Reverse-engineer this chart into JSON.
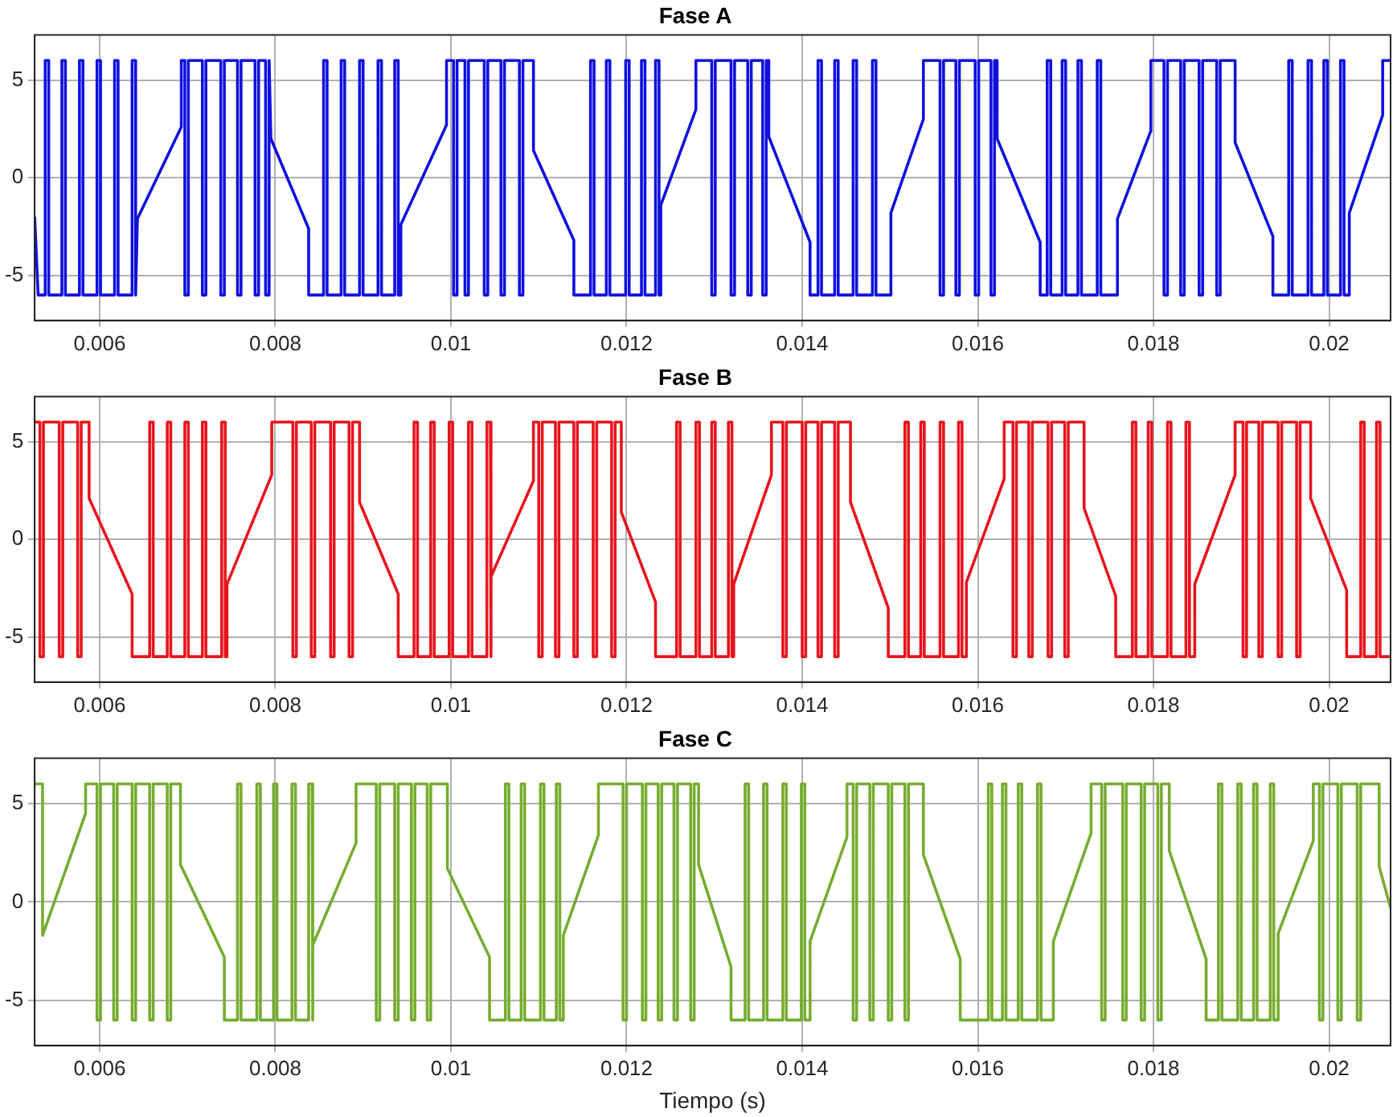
{
  "chart_data": [
    {
      "type": "line",
      "title": "Fase A",
      "xlim": [
        0.00526,
        0.0207
      ],
      "xticks": [
        0.006,
        0.008,
        0.01,
        0.012,
        0.014,
        0.016,
        0.018,
        0.02
      ],
      "ylim": [
        -7.3,
        7.3
      ],
      "yticks": [
        -5,
        0,
        5
      ],
      "grid": true,
      "marker": "none",
      "line_style": "solid",
      "series": [
        {
          "color": "#1010e0",
          "x": [
            0.00526,
            0.0053,
            0.00538,
            0.00538,
            0.00542,
            0.00542,
            0.00557,
            0.00557,
            0.00561,
            0.00561,
            0.00577,
            0.00577,
            0.00581,
            0.00581,
            0.00597,
            0.00597,
            0.00601,
            0.00601,
            0.00617,
            0.00617,
            0.00621,
            0.00621,
            0.00637,
            0.00637,
            0.00641,
            0.00641,
            0.00643,
            0.00693,
            0.00693,
            0.00697,
            0.00697,
            0.00701,
            0.00701,
            0.00717,
            0.00717,
            0.00721,
            0.00721,
            0.00738,
            0.00738,
            0.00742,
            0.00742,
            0.00757,
            0.00757,
            0.00761,
            0.00761,
            0.00777,
            0.00777,
            0.00781,
            0.00781,
            0.00789,
            0.00789,
            0.00793,
            0.00793,
            0.00795,
            0.00838,
            0.00838,
            0.00855,
            0.00855,
            0.00859,
            0.00859,
            0.00875,
            0.00875,
            0.00879,
            0.00879,
            0.00896,
            0.00896,
            0.009,
            0.009,
            0.00917,
            0.00917,
            0.00921,
            0.00921,
            0.00936,
            0.00936,
            0.0094,
            0.0094,
            0.00943,
            0.00943,
            0.00995,
            0.00995,
            0.01003,
            0.01003,
            0.01007,
            0.01007,
            0.01016,
            0.01016,
            0.0102,
            0.0102,
            0.01038,
            0.01038,
            0.01042,
            0.01042,
            0.01057,
            0.01057,
            0.01061,
            0.01061,
            0.01078,
            0.01078,
            0.01082,
            0.01082,
            0.01094,
            0.01094,
            0.0114,
            0.0114,
            0.01159,
            0.01159,
            0.01163,
            0.01163,
            0.01177,
            0.01177,
            0.01181,
            0.01181,
            0.01199,
            0.01199,
            0.01203,
            0.01203,
            0.01217,
            0.01217,
            0.01221,
            0.01221,
            0.01233,
            0.01233,
            0.01237,
            0.01237,
            0.01239,
            0.01239,
            0.01279,
            0.01279,
            0.01297,
            0.01297,
            0.01301,
            0.01301,
            0.01319,
            0.01319,
            0.01323,
            0.01323,
            0.01338,
            0.01338,
            0.01342,
            0.01342,
            0.01355,
            0.01355,
            0.01359,
            0.01359,
            0.01362,
            0.01362,
            0.01409,
            0.01409,
            0.01418,
            0.01418,
            0.01422,
            0.01422,
            0.01437,
            0.01437,
            0.01441,
            0.01441,
            0.01458,
            0.01458,
            0.01462,
            0.01462,
            0.0148,
            0.0148,
            0.01484,
            0.01484,
            0.01501,
            0.01501,
            0.01538,
            0.01538,
            0.01557,
            0.01557,
            0.01561,
            0.01561,
            0.01575,
            0.01575,
            0.01579,
            0.01579,
            0.01597,
            0.01597,
            0.01601,
            0.01601,
            0.01615,
            0.01615,
            0.01619,
            0.01619,
            0.01622,
            0.01622,
            0.01671,
            0.01671,
            0.01679,
            0.01679,
            0.01683,
            0.01683,
            0.01696,
            0.01696,
            0.017,
            0.017,
            0.01714,
            0.01714,
            0.01718,
            0.01718,
            0.01736,
            0.01736,
            0.0174,
            0.0174,
            0.01759,
            0.01759,
            0.01797,
            0.01797,
            0.01812,
            0.01812,
            0.01816,
            0.01816,
            0.01831,
            0.01831,
            0.01835,
            0.01835,
            0.01852,
            0.01852,
            0.01856,
            0.01856,
            0.01872,
            0.01872,
            0.01876,
            0.01876,
            0.01893,
            0.01893,
            0.01936,
            0.01936,
            0.01954,
            0.01954,
            0.01958,
            0.01958,
            0.01976,
            0.01976,
            0.0198,
            0.0198,
            0.01994,
            0.01994,
            0.01998,
            0.01998,
            0.02013,
            0.02013,
            0.02017,
            0.02017,
            0.02023,
            0.02023,
            0.02061,
            0.02061,
            0.0207
          ],
          "values": [
            -2,
            -6,
            -6,
            6,
            6,
            -6,
            -6,
            6,
            6,
            -6,
            -6,
            6,
            6,
            -6,
            -6,
            6,
            6,
            -6,
            -6,
            6,
            6,
            -6,
            -6,
            6,
            6,
            -6,
            -2.1,
            2.6,
            6,
            6,
            -6,
            -6,
            6,
            6,
            -6,
            -6,
            6,
            6,
            -6,
            -6,
            6,
            6,
            -6,
            -6,
            6,
            6,
            -6,
            -6,
            6,
            6,
            -6,
            -6,
            6,
            2,
            -2.6,
            -6,
            -6,
            6,
            6,
            -6,
            -6,
            6,
            6,
            -6,
            -6,
            6,
            6,
            -6,
            -6,
            6,
            6,
            -6,
            -6,
            6,
            6,
            -6,
            -6,
            -2.4,
            2.7,
            6,
            6,
            -6,
            -6,
            6,
            6,
            -6,
            -6,
            6,
            6,
            -6,
            -6,
            6,
            6,
            -6,
            -6,
            6,
            6,
            -6,
            -6,
            6,
            6,
            1.4,
            -3.2,
            -6,
            -6,
            6,
            6,
            -6,
            -6,
            6,
            6,
            -6,
            -6,
            6,
            6,
            -6,
            -6,
            6,
            6,
            -6,
            -6,
            6,
            6,
            -6,
            -6,
            -1.4,
            3.5,
            6,
            6,
            -6,
            -6,
            6,
            6,
            -6,
            -6,
            6,
            6,
            -6,
            -6,
            6,
            6,
            -6,
            -6,
            6,
            6,
            2.1,
            -3.3,
            -6,
            -6,
            6,
            6,
            -6,
            -6,
            6,
            6,
            -6,
            -6,
            6,
            6,
            -6,
            -6,
            6,
            6,
            -6,
            -6,
            -1.8,
            3,
            6,
            6,
            -6,
            -6,
            6,
            6,
            -6,
            -6,
            6,
            6,
            -6,
            -6,
            6,
            6,
            -6,
            -6,
            6,
            6,
            2,
            -3.3,
            -6,
            -6,
            6,
            6,
            -6,
            -6,
            6,
            6,
            -6,
            -6,
            6,
            6,
            -6,
            -6,
            6,
            6,
            -6,
            -6,
            -2.1,
            2.4,
            6,
            6,
            -6,
            -6,
            6,
            6,
            -6,
            -6,
            6,
            6,
            -6,
            -6,
            6,
            6,
            -6,
            -6,
            6,
            6,
            1.8,
            -3,
            -6,
            -6,
            6,
            6,
            -6,
            -6,
            6,
            6,
            -6,
            -6,
            6,
            6,
            -6,
            -6,
            6,
            6,
            -6,
            -6,
            -1.8,
            3.2,
            6,
            6
          ]
        }
      ]
    },
    {
      "type": "line",
      "title": "Fase B",
      "xlim": [
        0.00526,
        0.0207
      ],
      "xticks": [
        0.006,
        0.008,
        0.01,
        0.012,
        0.014,
        0.016,
        0.018,
        0.02
      ],
      "ylim": [
        -7.3,
        7.3
      ],
      "yticks": [
        -5,
        0,
        5
      ],
      "grid": true,
      "marker": "none",
      "line_style": "solid",
      "series": [
        {
          "color": "#e8141c",
          "x": [
            0.00526,
            0.00532,
            0.00532,
            0.00536,
            0.00536,
            0.00554,
            0.00554,
            0.00558,
            0.00558,
            0.00575,
            0.00575,
            0.00579,
            0.00579,
            0.00588,
            0.00588,
            0.00637,
            0.00637,
            0.00657,
            0.00657,
            0.00661,
            0.00661,
            0.00677,
            0.00677,
            0.00681,
            0.00681,
            0.00697,
            0.00697,
            0.00701,
            0.00701,
            0.00717,
            0.00717,
            0.00721,
            0.00721,
            0.00739,
            0.00739,
            0.00743,
            0.00743,
            0.00745,
            0.00745,
            0.00796,
            0.00796,
            0.0082,
            0.0082,
            0.00824,
            0.00824,
            0.00841,
            0.00841,
            0.00845,
            0.00845,
            0.00863,
            0.00863,
            0.00867,
            0.00867,
            0.00884,
            0.00884,
            0.00888,
            0.00888,
            0.00896,
            0.00896,
            0.0094,
            0.0094,
            0.00958,
            0.00958,
            0.00962,
            0.00962,
            0.00977,
            0.00977,
            0.00981,
            0.00981,
            0.00998,
            0.00998,
            0.01002,
            0.01002,
            0.0102,
            0.0102,
            0.01024,
            0.01024,
            0.01041,
            0.01041,
            0.01045,
            0.01045,
            0.01046,
            0.01046,
            0.01094,
            0.01094,
            0.011,
            0.011,
            0.01104,
            0.01104,
            0.01119,
            0.01119,
            0.01123,
            0.01123,
            0.0114,
            0.0114,
            0.01144,
            0.01144,
            0.01162,
            0.01162,
            0.01166,
            0.01166,
            0.01183,
            0.01183,
            0.01187,
            0.01187,
            0.01194,
            0.01194,
            0.01233,
            0.01233,
            0.01257,
            0.01257,
            0.01261,
            0.01261,
            0.01279,
            0.01279,
            0.01283,
            0.01283,
            0.01297,
            0.01297,
            0.01301,
            0.01301,
            0.01316,
            0.01316,
            0.0132,
            0.0132,
            0.01322,
            0.01322,
            0.01365,
            0.01365,
            0.01378,
            0.01378,
            0.01382,
            0.01382,
            0.014,
            0.014,
            0.01404,
            0.01404,
            0.01418,
            0.01418,
            0.01422,
            0.01422,
            0.01437,
            0.01437,
            0.01441,
            0.01441,
            0.01455,
            0.01455,
            0.01498,
            0.01498,
            0.01517,
            0.01517,
            0.01521,
            0.01521,
            0.01535,
            0.01535,
            0.01539,
            0.01539,
            0.01557,
            0.01557,
            0.01561,
            0.01561,
            0.01578,
            0.01578,
            0.01582,
            0.01582,
            0.01587,
            0.01587,
            0.0163,
            0.0163,
            0.0164,
            0.0164,
            0.01644,
            0.01644,
            0.01658,
            0.01658,
            0.01662,
            0.01662,
            0.0168,
            0.0168,
            0.01684,
            0.01684,
            0.01699,
            0.01699,
            0.01703,
            0.01703,
            0.01721,
            0.01721,
            0.01757,
            0.01757,
            0.01776,
            0.01776,
            0.0178,
            0.0178,
            0.01794,
            0.01794,
            0.01798,
            0.01798,
            0.01816,
            0.01816,
            0.0182,
            0.0182,
            0.01837,
            0.01837,
            0.01841,
            0.01841,
            0.01847,
            0.01847,
            0.01893,
            0.01893,
            0.01902,
            0.01902,
            0.01906,
            0.01906,
            0.0192,
            0.0192,
            0.01924,
            0.01924,
            0.01942,
            0.01942,
            0.01946,
            0.01946,
            0.01963,
            0.01963,
            0.01967,
            0.01967,
            0.01979,
            0.01979,
            0.0202,
            0.0202,
            0.02036,
            0.02036,
            0.0204,
            0.0204,
            0.02054,
            0.02054,
            0.02058,
            0.02058,
            0.0207
          ],
          "values": [
            6,
            6,
            -6,
            -6,
            6,
            6,
            -6,
            -6,
            6,
            6,
            -6,
            -6,
            6,
            6,
            2.1,
            -2.8,
            -6,
            -6,
            6,
            6,
            -6,
            -6,
            6,
            6,
            -6,
            -6,
            6,
            6,
            -6,
            -6,
            6,
            6,
            -6,
            -6,
            6,
            6,
            -6,
            -6,
            -2.3,
            3.3,
            6,
            6,
            -6,
            -6,
            6,
            6,
            -6,
            -6,
            6,
            6,
            -6,
            -6,
            6,
            6,
            -6,
            -6,
            6,
            6,
            1.9,
            -2.8,
            -6,
            -6,
            6,
            6,
            -6,
            -6,
            6,
            6,
            -6,
            -6,
            6,
            6,
            -6,
            -6,
            6,
            6,
            -6,
            -6,
            6,
            6,
            -6,
            -6,
            -1.9,
            3,
            6,
            6,
            -6,
            -6,
            6,
            6,
            -6,
            -6,
            6,
            6,
            -6,
            -6,
            6,
            6,
            -6,
            -6,
            6,
            6,
            -6,
            -6,
            6,
            6,
            1.4,
            -3.2,
            -6,
            -6,
            6,
            6,
            -6,
            -6,
            6,
            6,
            -6,
            -6,
            6,
            6,
            -6,
            -6,
            6,
            6,
            -6,
            -6,
            -2.3,
            3.3,
            6,
            6,
            -6,
            -6,
            6,
            6,
            -6,
            -6,
            6,
            6,
            -6,
            -6,
            6,
            6,
            -6,
            -6,
            6,
            6,
            1.9,
            -3.5,
            -6,
            -6,
            6,
            6,
            -6,
            -6,
            6,
            6,
            -6,
            -6,
            6,
            6,
            -6,
            -6,
            6,
            6,
            -6,
            -6,
            -2.2,
            3.1,
            6,
            6,
            -6,
            -6,
            6,
            6,
            -6,
            -6,
            6,
            6,
            -6,
            -6,
            6,
            6,
            -6,
            -6,
            6,
            6,
            1.6,
            -2.9,
            -6,
            -6,
            6,
            6,
            -6,
            -6,
            6,
            6,
            -6,
            -6,
            6,
            6,
            -6,
            -6,
            6,
            6,
            -6,
            -6,
            -2.3,
            3.3,
            6,
            6,
            -6,
            -6,
            6,
            6,
            -6,
            -6,
            6,
            6,
            -6,
            -6,
            6,
            6,
            -6,
            -6,
            6,
            6,
            2.1,
            -2.6,
            -6,
            -6,
            6,
            6,
            -6,
            -6,
            6,
            6,
            -6,
            -6
          ]
        }
      ]
    },
    {
      "type": "line",
      "title": "Fase C",
      "xlabel": "Tiempo (s)",
      "xlim": [
        0.00526,
        0.0207
      ],
      "xticks": [
        0.006,
        0.008,
        0.01,
        0.012,
        0.014,
        0.016,
        0.018,
        0.02
      ],
      "ylim": [
        -7.3,
        7.3
      ],
      "yticks": [
        -5,
        0,
        5
      ],
      "grid": true,
      "marker": "none",
      "line_style": "solid",
      "series": [
        {
          "color": "#77ac30",
          "x": [
            0.00526,
            0.00535,
            0.00535,
            0.00584,
            0.00584,
            0.00597,
            0.00597,
            0.00601,
            0.00601,
            0.00616,
            0.00616,
            0.0062,
            0.0062,
            0.00637,
            0.00637,
            0.00641,
            0.00641,
            0.00657,
            0.00657,
            0.00661,
            0.00661,
            0.00677,
            0.00677,
            0.00681,
            0.00681,
            0.00692,
            0.00692,
            0.00742,
            0.00742,
            0.00757,
            0.00757,
            0.00761,
            0.00761,
            0.00779,
            0.00779,
            0.00783,
            0.00783,
            0.00798,
            0.00798,
            0.00802,
            0.00802,
            0.00819,
            0.00819,
            0.00823,
            0.00823,
            0.00838,
            0.00838,
            0.00842,
            0.00842,
            0.00843,
            0.00843,
            0.00892,
            0.00892,
            0.00915,
            0.00915,
            0.00919,
            0.00919,
            0.00936,
            0.00936,
            0.0094,
            0.0094,
            0.00955,
            0.00955,
            0.00959,
            0.00959,
            0.00973,
            0.00973,
            0.00977,
            0.00977,
            0.00996,
            0.00996,
            0.01044,
            0.01044,
            0.01062,
            0.01062,
            0.01066,
            0.01066,
            0.0108,
            0.0108,
            0.01084,
            0.01084,
            0.01102,
            0.01102,
            0.01106,
            0.01106,
            0.0112,
            0.0112,
            0.01124,
            0.01124,
            0.01128,
            0.01128,
            0.01168,
            0.01168,
            0.01196,
            0.01196,
            0.012,
            0.012,
            0.01218,
            0.01218,
            0.01222,
            0.01222,
            0.01236,
            0.01236,
            0.0124,
            0.0124,
            0.01254,
            0.01254,
            0.01258,
            0.01258,
            0.01273,
            0.01273,
            0.01277,
            0.01277,
            0.01282,
            0.01282,
            0.01319,
            0.01319,
            0.01335,
            0.01335,
            0.01339,
            0.01339,
            0.01356,
            0.01356,
            0.0136,
            0.0136,
            0.01378,
            0.01378,
            0.01382,
            0.01382,
            0.01399,
            0.01399,
            0.01403,
            0.01403,
            0.01409,
            0.01409,
            0.01451,
            0.01451,
            0.01458,
            0.01458,
            0.01462,
            0.01462,
            0.01477,
            0.01477,
            0.01481,
            0.01481,
            0.01498,
            0.01498,
            0.01502,
            0.01502,
            0.01517,
            0.01517,
            0.01521,
            0.01521,
            0.01538,
            0.01538,
            0.0158,
            0.0158,
            0.01612,
            0.01612,
            0.01616,
            0.01616,
            0.01628,
            0.01628,
            0.01632,
            0.01632,
            0.01646,
            0.01646,
            0.0165,
            0.0165,
            0.01668,
            0.01668,
            0.01672,
            0.01672,
            0.01686,
            0.01686,
            0.01729,
            0.01729,
            0.01741,
            0.01741,
            0.01745,
            0.01745,
            0.01765,
            0.01765,
            0.01769,
            0.01769,
            0.01786,
            0.01786,
            0.0179,
            0.0179,
            0.01805,
            0.01805,
            0.01809,
            0.01809,
            0.01818,
            0.01818,
            0.0186,
            0.0186,
            0.01874,
            0.01874,
            0.01878,
            0.01878,
            0.01896,
            0.01896,
            0.019,
            0.019,
            0.01914,
            0.01914,
            0.01918,
            0.01918,
            0.01933,
            0.01933,
            0.01937,
            0.01937,
            0.01942,
            0.01942,
            0.01982,
            0.01982,
            0.01989,
            0.01989,
            0.01993,
            0.01993,
            0.0201,
            0.0201,
            0.02014,
            0.02014,
            0.02032,
            0.02032,
            0.02036,
            0.02036,
            0.02057,
            0.02057,
            0.0207
          ],
          "values": [
            6,
            6,
            -1.7,
            4.5,
            6,
            6,
            -6,
            -6,
            6,
            6,
            -6,
            -6,
            6,
            6,
            -6,
            -6,
            6,
            6,
            -6,
            -6,
            6,
            6,
            -6,
            -6,
            6,
            6,
            1.9,
            -2.8,
            -6,
            -6,
            6,
            6,
            -6,
            -6,
            6,
            6,
            -6,
            -6,
            6,
            6,
            -6,
            -6,
            6,
            6,
            -6,
            -6,
            6,
            6,
            -6,
            -6,
            -2.2,
            3,
            6,
            6,
            -6,
            -6,
            6,
            6,
            -6,
            -6,
            6,
            6,
            -6,
            -6,
            6,
            6,
            -6,
            -6,
            6,
            6,
            1.7,
            -2.8,
            -6,
            -6,
            6,
            6,
            -6,
            -6,
            6,
            6,
            -6,
            -6,
            6,
            6,
            -6,
            -6,
            6,
            6,
            -6,
            -6,
            -1.7,
            3.4,
            6,
            6,
            -6,
            -6,
            6,
            6,
            -6,
            -6,
            6,
            6,
            -6,
            -6,
            6,
            6,
            -6,
            -6,
            6,
            6,
            -6,
            -6,
            6,
            6,
            1.9,
            -3.3,
            -6,
            -6,
            6,
            6,
            -6,
            -6,
            6,
            6,
            -6,
            -6,
            6,
            6,
            -6,
            -6,
            6,
            6,
            -6,
            -6,
            -2,
            3.3,
            6,
            6,
            -6,
            -6,
            6,
            6,
            -6,
            -6,
            6,
            6,
            -6,
            -6,
            6,
            6,
            -6,
            -6,
            6,
            6,
            2.4,
            -2.9,
            -6,
            -6,
            6,
            6,
            -6,
            -6,
            6,
            6,
            -6,
            -6,
            6,
            6,
            -6,
            -6,
            6,
            6,
            -6,
            -6,
            -2,
            3.5,
            6,
            6,
            -6,
            -6,
            6,
            6,
            -6,
            -6,
            6,
            6,
            -6,
            -6,
            6,
            6,
            -6,
            -6,
            6,
            6,
            2.6,
            -2.9,
            -6,
            -6,
            6,
            6,
            -6,
            -6,
            6,
            6,
            -6,
            -6,
            6,
            6,
            -6,
            -6,
            6,
            6,
            -6,
            -6,
            -1.6,
            3.1,
            6,
            6,
            -6,
            -6,
            6,
            6,
            -6,
            -6,
            6,
            6,
            -6,
            -6,
            6,
            6,
            1.8,
            -0.3
          ]
        }
      ]
    }
  ]
}
